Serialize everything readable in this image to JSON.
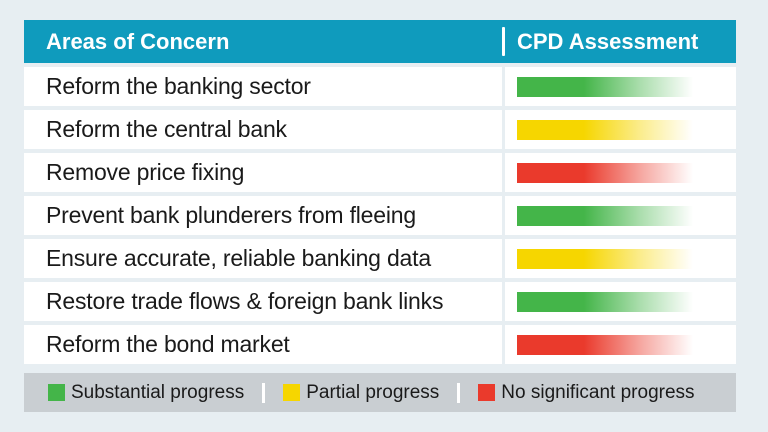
{
  "header": {
    "col_concern": "Areas of Concern",
    "col_assessment": "CPD Assessment"
  },
  "colors": {
    "header_bg": "#0f9bbd",
    "substantial": "#44b549",
    "partial": "#f6d600",
    "none": "#ea3a2c"
  },
  "rows": [
    {
      "concern": "Reform the banking sector",
      "assessment": "substantial"
    },
    {
      "concern": "Reform the central bank",
      "assessment": "partial"
    },
    {
      "concern": "Remove price fixing",
      "assessment": "none"
    },
    {
      "concern": "Prevent bank plunderers from fleeing",
      "assessment": "substantial"
    },
    {
      "concern": "Ensure accurate, reliable banking data",
      "assessment": "partial"
    },
    {
      "concern": "Restore trade flows & foreign bank links",
      "assessment": "substantial"
    },
    {
      "concern": "Reform the bond market",
      "assessment": "none"
    }
  ],
  "legend": {
    "substantial": "Substantial progress",
    "partial": "Partial progress",
    "none": "No significant progress"
  }
}
